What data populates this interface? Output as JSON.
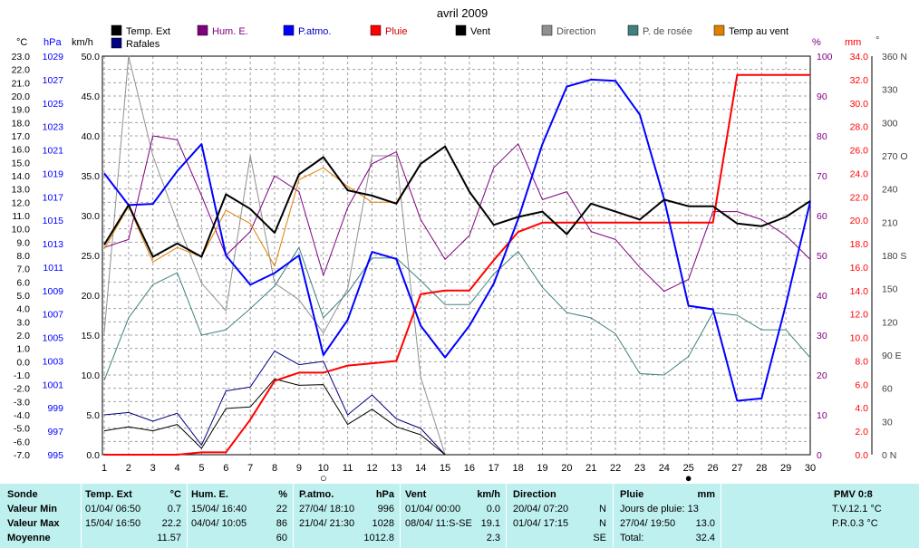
{
  "chart_data": {
    "type": "line",
    "title": "avril 2009",
    "x": [
      1,
      2,
      3,
      4,
      5,
      6,
      7,
      8,
      9,
      10,
      11,
      12,
      13,
      14,
      15,
      16,
      17,
      18,
      19,
      20,
      21,
      22,
      23,
      24,
      25,
      26,
      27,
      28,
      29,
      30
    ],
    "axes": {
      "temp_c": {
        "label": "°C",
        "range": [
          -7,
          23
        ],
        "ticks": [
          "23.0",
          "22.0",
          "21.0",
          "20.0",
          "19.0",
          "18.0",
          "17.0",
          "16.0",
          "15.0",
          "14.0",
          "13.0",
          "12.0",
          "11.0",
          "10.0",
          "9.0",
          "8.0",
          "7.0",
          "6.0",
          "5.0",
          "4.0",
          "3.0",
          "2.0",
          "1.0",
          "0.0",
          "-1.0",
          "-2.0",
          "-3.0",
          "-4.0",
          "-5.0",
          "-6.0",
          "-7.0"
        ]
      },
      "pressure_hpa": {
        "label": "hPa",
        "range": [
          995,
          1029
        ],
        "ticks": [
          "1029",
          "1027",
          "1025",
          "1023",
          "1021",
          "1019",
          "1017",
          "1015",
          "1013",
          "1011",
          "1009",
          "1007",
          "1005",
          "1003",
          "1001",
          "999",
          "997",
          "995"
        ]
      },
      "wind_kmh": {
        "label": "km/h",
        "range": [
          0,
          50
        ],
        "ticks": [
          "50.0",
          "45.0",
          "40.0",
          "35.0",
          "30.0",
          "25.0",
          "20.0",
          "15.0",
          "10.0",
          "5.0",
          "0.0"
        ]
      },
      "humidity_pct": {
        "label": "%",
        "range": [
          0,
          100
        ],
        "ticks": [
          "100",
          "90",
          "80",
          "70",
          "60",
          "50",
          "40",
          "30",
          "20",
          "10",
          "0"
        ]
      },
      "rain_mm": {
        "label": "mm",
        "range": [
          0,
          34
        ],
        "ticks": [
          "34.0",
          "32.0",
          "30.0",
          "28.0",
          "26.0",
          "24.0",
          "22.0",
          "20.0",
          "18.0",
          "16.0",
          "14.0",
          "12.0",
          "10.0",
          "8.0",
          "6.0",
          "4.0",
          "2.0",
          "0.0"
        ]
      },
      "direction_deg": {
        "label": "°",
        "range": [
          0,
          360
        ],
        "ticks": [
          "360 N",
          "330",
          "300",
          "270 O",
          "240",
          "210",
          "180 S",
          "150",
          "120",
          "90 E",
          "60",
          "30",
          "0  N"
        ]
      }
    },
    "legend": [
      "Temp. Ext",
      "Rafales",
      "Hum. E.",
      "P.atmo.",
      "Pluie",
      "Vent",
      "Direction",
      "P. de rosée",
      "Temp au vent"
    ],
    "series": [
      {
        "name": "Temp. Ext",
        "axis": "temp_c",
        "color": "#000000",
        "width": 2,
        "values": [
          8.8,
          11.8,
          7.9,
          8.9,
          7.9,
          12.6,
          11.5,
          9.7,
          14.1,
          15.4,
          12.9,
          12.5,
          11.9,
          14.9,
          16.2,
          12.8,
          10.3,
          10.9,
          11.3,
          9.6,
          11.9,
          11.3,
          10.7,
          12.2,
          11.7,
          11.7,
          10.4,
          10.2,
          10.9,
          12.1
        ]
      },
      {
        "name": "Rafales",
        "color": "#000080",
        "width": 1,
        "axis": "wind_kmh",
        "values": [
          5.0,
          5.3,
          4.2,
          5.2,
          1.2,
          8.0,
          8.5,
          13.0,
          11.3,
          11.7,
          5.0,
          7.5,
          4.5,
          3.3,
          0,
          null,
          null,
          null,
          null,
          null,
          null,
          null,
          null,
          null,
          null,
          null,
          null,
          null,
          null,
          null
        ]
      },
      {
        "name": "Vent",
        "color": "#000000",
        "width": 1,
        "axis": "wind_kmh",
        "values": [
          3.0,
          3.5,
          3.0,
          3.8,
          0.8,
          5.8,
          6.0,
          9.5,
          8.7,
          8.8,
          3.8,
          5.7,
          3.5,
          2.5,
          0,
          null,
          null,
          null,
          null,
          null,
          null,
          null,
          null,
          null,
          null,
          null,
          null,
          null,
          null,
          null
        ]
      },
      {
        "name": "Hum. E.",
        "axis": "humidity_pct",
        "color": "#800080",
        "width": 1,
        "values": [
          52,
          54,
          80,
          79,
          65,
          50,
          56,
          70,
          66,
          45,
          62,
          73,
          76,
          59,
          49,
          55,
          72,
          78,
          64,
          66,
          56,
          54,
          47,
          41,
          44,
          61,
          61,
          59,
          55,
          49
        ]
      },
      {
        "name": "P.atmo.",
        "axis": "pressure_hpa",
        "color": "#0000ff",
        "width": 2,
        "values": [
          1019.0,
          1016.3,
          1016.4,
          1019.2,
          1021.5,
          1012.0,
          1009.5,
          1010.5,
          1012.0,
          1003.5,
          1006.5,
          1012.3,
          1011.7,
          1006.0,
          1003.3,
          1006.0,
          1009.6,
          1015.1,
          1021.5,
          1026.4,
          1027.0,
          1026.9,
          1024.0,
          1016.8,
          1007.7,
          1007.4,
          999.6,
          999.8,
          1007.8,
          1016.6
        ]
      },
      {
        "name": "Pluie",
        "axis": "rain_mm",
        "color": "#ff0000",
        "width": 2,
        "values": [
          0,
          0,
          0,
          0,
          0.2,
          0.2,
          3.0,
          6.3,
          7.0,
          7.0,
          7.6,
          7.8,
          8.0,
          13.7,
          14.0,
          14.0,
          16.6,
          19.0,
          19.8,
          19.8,
          19.8,
          19.8,
          19.8,
          19.8,
          19.8,
          19.8,
          32.4,
          32.4,
          32.4,
          32.4
        ]
      },
      {
        "name": "Direction",
        "axis": "direction_deg",
        "color": "#909090",
        "width": 1,
        "values": [
          110,
          360,
          270,
          210,
          155,
          130,
          270,
          155,
          140,
          110,
          150,
          270,
          270,
          70,
          0,
          null,
          null,
          null,
          null,
          null,
          null,
          null,
          null,
          null,
          null,
          null,
          null,
          null,
          null,
          null
        ]
      },
      {
        "name": "P. de rosée",
        "axis": "temp_c",
        "color": "#408080",
        "width": 1,
        "values": [
          -1.4,
          3.3,
          5.8,
          6.7,
          2.0,
          2.4,
          4.0,
          5.7,
          8.6,
          3.3,
          5.2,
          7.8,
          7.8,
          6.1,
          4.3,
          4.3,
          6.6,
          8.3,
          5.6,
          3.7,
          3.3,
          2.1,
          -0.9,
          -1.0,
          0.4,
          3.7,
          3.5,
          2.4,
          2.4,
          0.3
        ]
      },
      {
        "name": "Temp au vent",
        "axis": "temp_c",
        "color": "#e08000",
        "width": 1,
        "values": [
          8.5,
          11.7,
          7.5,
          8.6,
          7.9,
          11.4,
          10.4,
          7.2,
          13.7,
          14.6,
          13.2,
          12.0,
          12.0,
          14.9,
          null,
          null,
          null,
          null,
          null,
          null,
          null,
          null,
          null,
          null,
          null,
          null,
          null,
          null,
          null,
          null
        ]
      }
    ],
    "markers": [
      {
        "x": 10,
        "symbol": "○"
      },
      {
        "x": 25,
        "symbol": "●"
      }
    ],
    "grid": true,
    "legend_position": "top"
  },
  "stats": {
    "sonde": {
      "title": "Sonde",
      "min": "Valeur Min",
      "max": "Valeur Max",
      "avg": "Moyenne"
    },
    "temp": {
      "title": "Temp. Ext",
      "unit": "°C",
      "min_date": "01/04/  06:50",
      "min_val": "0.7",
      "max_date": "15/04/  16:50",
      "max_val": "22.2",
      "avg": "11.57"
    },
    "hum": {
      "title": "Hum. E.",
      "unit": "%",
      "min_date": "15/04/  16:40",
      "min_val": "22",
      "max_date": "04/04/  10:05",
      "max_val": "86",
      "avg": "60"
    },
    "patmo": {
      "title": "P.atmo.",
      "unit": "hPa",
      "min_date": "27/04/  18:10",
      "min_val": "996",
      "max_date": "21/04/  21:30",
      "max_val": "1028",
      "avg": "1012.8"
    },
    "vent": {
      "title": "Vent",
      "unit": "km/h",
      "min_date": "01/04/  00:00",
      "min_val": "0.0",
      "max_date": "08/04/  11:S-SE",
      "max_val": "19.1",
      "avg": "2.3"
    },
    "direction": {
      "title": "Direction",
      "min_date": "20/04/  07:20",
      "min_val": "N",
      "max_date": "01/04/  17:15",
      "max_val": "N",
      "avg": "SE"
    },
    "pluie": {
      "title": "Pluie",
      "unit": "mm",
      "row1": "Jours de pluie: 13",
      "row2_date": "27/04/  19:50",
      "row2_val": "13.0",
      "row3_label": "Total:",
      "row3_val": "32.4"
    },
    "pmv": {
      "title": "PMV 0:8",
      "tv": "T.V.12.1 °C",
      "pr": "P.R.0.3 °C"
    }
  }
}
